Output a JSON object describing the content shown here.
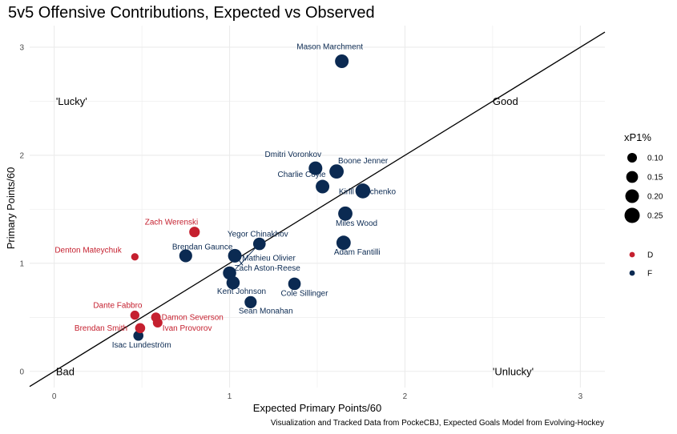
{
  "chart_data": {
    "type": "scatter",
    "title": "5v5 Offensive Contributions, Expected vs Observed",
    "xlabel": "Expected Primary Points/60",
    "ylabel": "Primary Points/60",
    "caption": "Visualization and Tracked Data from PockeCBJ, Expected Goals Model from Evolving-Hockey",
    "xlim": [
      -0.14,
      3.14
    ],
    "ylim": [
      -0.15,
      3.2
    ],
    "x_ticks": [
      0,
      1,
      2,
      3
    ],
    "y_ticks": [
      0,
      1,
      2,
      3
    ],
    "grid": true,
    "reference_line": {
      "slope": 1,
      "intercept": 0
    },
    "quadrant_labels": [
      {
        "text": "'Lucky'",
        "x": 0.01,
        "y": 2.5
      },
      {
        "text": "Good",
        "x": 2.5,
        "y": 2.5
      },
      {
        "text": "Bad",
        "x": 0.01,
        "y": 0.0
      },
      {
        "text": "'Unlucky'",
        "x": 2.5,
        "y": 0.0
      }
    ],
    "colors": {
      "D": "#c5202f",
      "F": "#0b2a52"
    },
    "size_legend": {
      "title": "xP1%",
      "values": [
        0.1,
        0.15,
        0.2,
        0.25
      ]
    },
    "color_legend": {
      "values": [
        "D",
        "F"
      ]
    },
    "points": [
      {
        "name": "Mason Marchment",
        "x": 1.64,
        "y": 2.87,
        "size": 0.2,
        "pos": "F"
      },
      {
        "name": "Dmitri Voronkov",
        "x": 1.49,
        "y": 1.88,
        "size": 0.2,
        "pos": "F"
      },
      {
        "name": "Boone Jenner",
        "x": 1.61,
        "y": 1.85,
        "size": 0.22,
        "pos": "F"
      },
      {
        "name": "Charlie Coyle",
        "x": 1.53,
        "y": 1.71,
        "size": 0.2,
        "pos": "F"
      },
      {
        "name": "Kirill Marchenko",
        "x": 1.76,
        "y": 1.67,
        "size": 0.24,
        "pos": "F"
      },
      {
        "name": "Miles Wood",
        "x": 1.66,
        "y": 1.46,
        "size": 0.22,
        "pos": "F"
      },
      {
        "name": "Adam Fantilli",
        "x": 1.65,
        "y": 1.19,
        "size": 0.22,
        "pos": "F"
      },
      {
        "name": "Yegor Chinakhov",
        "x": 1.17,
        "y": 1.18,
        "size": 0.17,
        "pos": "F"
      },
      {
        "name": "Mathieu Olivier",
        "x": 1.03,
        "y": 1.07,
        "size": 0.2,
        "pos": "F"
      },
      {
        "name": "Brendan Gaunce",
        "x": 0.75,
        "y": 1.07,
        "size": 0.18,
        "pos": "F"
      },
      {
        "name": "Zach Aston-Reese",
        "x": 1.0,
        "y": 0.91,
        "size": 0.19,
        "pos": "F"
      },
      {
        "name": "Kent Johnson",
        "x": 1.02,
        "y": 0.82,
        "size": 0.19,
        "pos": "F"
      },
      {
        "name": "Cole Sillinger",
        "x": 1.37,
        "y": 0.81,
        "size": 0.17,
        "pos": "F"
      },
      {
        "name": "Sean Monahan",
        "x": 1.12,
        "y": 0.64,
        "size": 0.16,
        "pos": "F"
      },
      {
        "name": "Isac Lundeström",
        "x": 0.48,
        "y": 0.33,
        "size": 0.11,
        "pos": "F"
      },
      {
        "name": "Zach Werenski",
        "x": 0.8,
        "y": 1.29,
        "size": 0.12,
        "pos": "D"
      },
      {
        "name": "Denton Mateychuk",
        "x": 0.46,
        "y": 1.06,
        "size": 0.06,
        "pos": "D"
      },
      {
        "name": "Dante Fabbro",
        "x": 0.46,
        "y": 0.52,
        "size": 0.09,
        "pos": "D"
      },
      {
        "name": "Damon Severson",
        "x": 0.58,
        "y": 0.5,
        "size": 0.1,
        "pos": "D"
      },
      {
        "name": "Ivan Provorov",
        "x": 0.59,
        "y": 0.45,
        "size": 0.1,
        "pos": "D"
      },
      {
        "name": "Brendan Smith",
        "x": 0.49,
        "y": 0.4,
        "size": 0.11,
        "pos": "D"
      }
    ]
  }
}
